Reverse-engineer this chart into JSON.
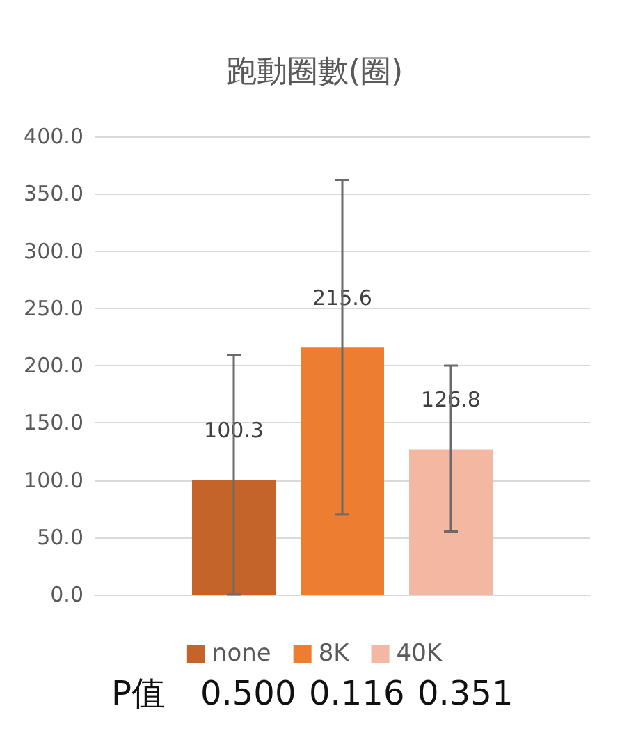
{
  "chart_data": {
    "type": "bar",
    "title": "跑動圈數(圈)",
    "categories": [
      null
    ],
    "series": [
      {
        "name": "none",
        "color": "#c4642a",
        "values": [
          100.3
        ],
        "errors": [
          [
            0.0,
            209
          ]
        ]
      },
      {
        "name": "8K",
        "color": "#ed7d31",
        "values": [
          215.6
        ],
        "errors": [
          [
            70,
            362
          ]
        ]
      },
      {
        "name": "40K",
        "color": "#f4b8a2",
        "values": [
          126.8
        ],
        "errors": [
          [
            55,
            200
          ]
        ]
      }
    ],
    "ylim": [
      0,
      400
    ],
    "yticks": [
      {
        "value": 0,
        "label": "0.0"
      },
      {
        "value": 50,
        "label": "50.0"
      },
      {
        "value": 100,
        "label": "100.0"
      },
      {
        "value": 150,
        "label": "150.0"
      },
      {
        "value": 200,
        "label": "200.0"
      },
      {
        "value": 250,
        "label": "250.0"
      },
      {
        "value": 300,
        "label": "300.0"
      },
      {
        "value": 350,
        "label": "350.0"
      },
      {
        "value": 400,
        "label": "400.0"
      }
    ],
    "grid": "y",
    "legend": "bottom",
    "data_labels": true,
    "annotations": [
      "P值",
      "0.500",
      "0.116",
      "0.351"
    ]
  }
}
